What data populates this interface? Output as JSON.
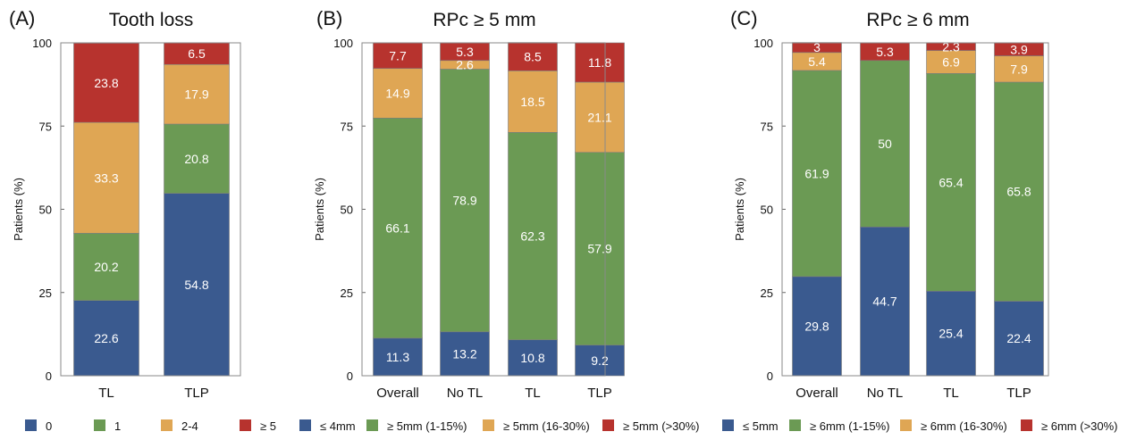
{
  "colors": {
    "blue": "#3a5a8f",
    "green": "#6b9a54",
    "orange": "#dfa654",
    "red": "#b7332e"
  },
  "chart_data": [
    {
      "type": "bar",
      "stacked": true,
      "panel_label": "(A)",
      "title": "Tooth loss",
      "ylabel": "Patients (%)",
      "ylim": [
        0,
        100
      ],
      "yticks": [
        "0",
        "25",
        "50",
        "75",
        "100"
      ],
      "categories": [
        "TL",
        "TLP"
      ],
      "series": [
        {
          "name": "0",
          "color": "#3a5a8f",
          "values": [
            22.6,
            54.8
          ],
          "labels": [
            "22.6",
            "54.8"
          ]
        },
        {
          "name": "1",
          "color": "#6b9a54",
          "values": [
            20.2,
            20.8
          ],
          "labels": [
            "20.2",
            "20.8"
          ]
        },
        {
          "name": "2-4",
          "color": "#dfa654",
          "values": [
            33.3,
            17.9
          ],
          "labels": [
            "33.3",
            "17.9"
          ]
        },
        {
          "name": "≥ 5",
          "color": "#b7332e",
          "values": [
            23.8,
            6.5
          ],
          "labels": [
            "23.8",
            "6.5"
          ]
        }
      ]
    },
    {
      "type": "bar",
      "stacked": true,
      "panel_label": "(B)",
      "title": "RPc ≥ 5 mm",
      "ylabel": "Patients (%)",
      "ylim": [
        0,
        100
      ],
      "yticks": [
        "0",
        "25",
        "50",
        "75",
        "100"
      ],
      "categories": [
        "Overall",
        "No TL",
        "TL",
        "TLP"
      ],
      "series": [
        {
          "name": "≤ 4mm",
          "color": "#3a5a8f",
          "values": [
            11.3,
            13.2,
            10.8,
            9.2
          ],
          "labels": [
            "11.3",
            "13.2",
            "10.8",
            "9.2"
          ]
        },
        {
          "name": "≥ 5mm (1-15%)",
          "color": "#6b9a54",
          "values": [
            66.1,
            78.9,
            62.3,
            57.9
          ],
          "labels": [
            "66.1",
            "78.9",
            "62.3",
            "57.9"
          ]
        },
        {
          "name": "≥ 5mm (16-30%)",
          "color": "#dfa654",
          "values": [
            14.9,
            2.6,
            18.5,
            21.1
          ],
          "labels": [
            "14.9",
            "2.6",
            "18.5",
            "21.1"
          ]
        },
        {
          "name": "≥ 5mm (>30%)",
          "color": "#b7332e",
          "values": [
            7.7,
            5.3,
            8.5,
            11.8
          ],
          "labels": [
            "7.7",
            "5.3",
            "8.5",
            "11.8"
          ]
        }
      ]
    },
    {
      "type": "bar",
      "stacked": true,
      "panel_label": "(C)",
      "title": "RPc ≥ 6 mm",
      "ylabel": "Patients (%)",
      "ylim": [
        0,
        100
      ],
      "yticks": [
        "0",
        "25",
        "50",
        "75",
        "100"
      ],
      "categories": [
        "Overall",
        "No TL",
        "TL",
        "TLP"
      ],
      "series": [
        {
          "name": "≤ 5mm",
          "color": "#3a5a8f",
          "values": [
            29.8,
            44.7,
            25.4,
            22.4
          ],
          "labels": [
            "29.8",
            "44.7",
            "25.4",
            "22.4"
          ]
        },
        {
          "name": "≥ 6mm (1-15%)",
          "color": "#6b9a54",
          "values": [
            61.9,
            50,
            65.4,
            65.8
          ],
          "labels": [
            "61.9",
            "50",
            "65.4",
            "65.8"
          ]
        },
        {
          "name": "≥ 6mm (16-30%)",
          "color": "#dfa654",
          "values": [
            5.4,
            0,
            6.9,
            7.9
          ],
          "labels": [
            "5.4",
            "",
            "6.9",
            "7.9"
          ]
        },
        {
          "name": "≥ 6mm (>30%)",
          "color": "#b7332e",
          "values": [
            3,
            5.3,
            2.3,
            3.9
          ],
          "labels": [
            "3",
            "5.3",
            "2.3",
            "3.9"
          ]
        }
      ]
    }
  ]
}
